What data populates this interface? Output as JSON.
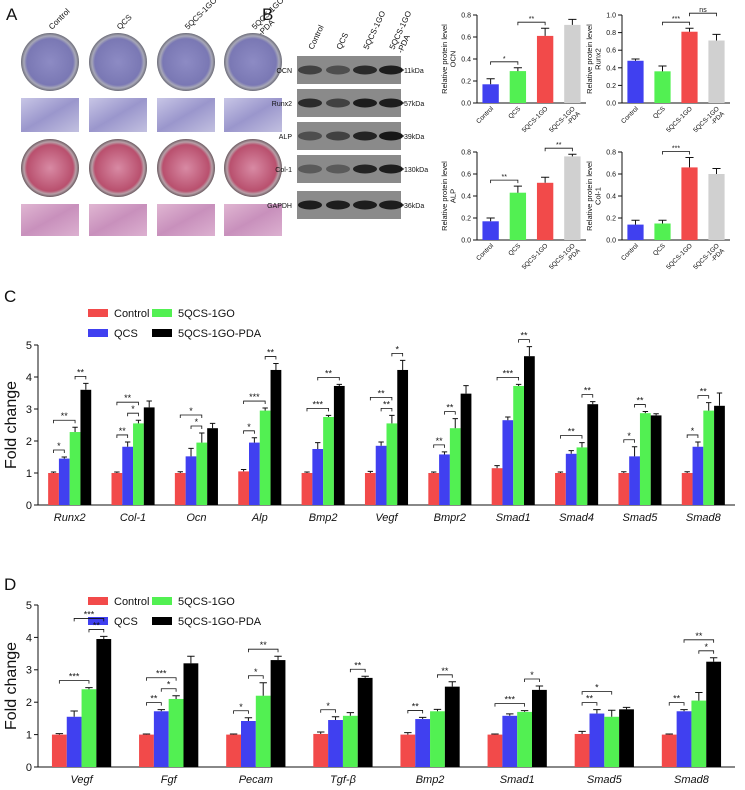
{
  "figure": {
    "panel_labels": [
      "A",
      "B",
      "C",
      "D"
    ],
    "stain_columns": [
      "Control",
      "QCS",
      "5QCS-1GO",
      "5QCS-1GO\n-PDA"
    ],
    "blot": {
      "columns": [
        "Control",
        "QCS",
        "5QCS-1GO",
        "5QCS-1GO\n-PDA"
      ],
      "rows": [
        "OCN",
        "Runx2",
        "ALP",
        "Col-1",
        "GAPDH"
      ],
      "sizes": [
        "11kDa",
        "57kDa",
        "39kDa",
        "130kDa",
        "36kDa"
      ]
    }
  },
  "chart_data": [
    {
      "type": "bar",
      "ylabel": "Relative protein level\nOCN",
      "categories": [
        "Control",
        "QCS",
        "5QCS-1GO",
        "5QCS-1GO\n-PDA"
      ],
      "values": [
        0.17,
        0.29,
        0.61,
        0.71
      ],
      "errors": [
        0.05,
        0.03,
        0.07,
        0.05
      ],
      "colors": [
        "#4040f0",
        "#52f052",
        "#f24a4a",
        "#d0d0d0"
      ],
      "ylim": [
        0,
        0.8
      ],
      "yticks": [
        {
          "value": 0,
          "label": "0.0"
        },
        0.2,
        0.4,
        0.6,
        0.8
      ],
      "annotations": [
        {
          "label": "*",
          "between": [
            0,
            1
          ]
        },
        {
          "label": "**",
          "between": [
            1,
            2
          ]
        }
      ]
    },
    {
      "type": "bar",
      "ylabel": "Relative protein level\nRunx2",
      "categories": [
        "Control",
        "QCS",
        "5QCS-1GO",
        "5QCS-1GO\n-PDA"
      ],
      "values": [
        0.48,
        0.36,
        0.81,
        0.71
      ],
      "errors": [
        0.02,
        0.06,
        0.04,
        0.07
      ],
      "colors": [
        "#4040f0",
        "#52f052",
        "#f24a4a",
        "#d0d0d0"
      ],
      "ylim": [
        0,
        1
      ],
      "yticks": [
        {
          "value": 0,
          "label": "0.0"
        },
        0.2,
        0.4,
        0.6,
        0.8,
        {
          "value": 1,
          "label": "1.0"
        }
      ],
      "annotations": [
        {
          "label": "***",
          "between": [
            1,
            2
          ]
        },
        {
          "label": "ns",
          "between": [
            2,
            3
          ]
        }
      ]
    },
    {
      "type": "bar",
      "ylabel": "Relative protein level\nALP",
      "categories": [
        "Control",
        "QCS",
        "5QCS-1GO",
        "5QCS-1GO\n-PDA"
      ],
      "values": [
        0.17,
        0.43,
        0.52,
        0.76
      ],
      "errors": [
        0.03,
        0.06,
        0.05,
        0.02
      ],
      "colors": [
        "#4040f0",
        "#52f052",
        "#f24a4a",
        "#d0d0d0"
      ],
      "ylim": [
        0,
        0.8
      ],
      "yticks": [
        {
          "value": 0,
          "label": "0.0"
        },
        0.2,
        0.4,
        0.6,
        0.8
      ],
      "annotations": [
        {
          "label": "**",
          "between": [
            0,
            1
          ]
        },
        {
          "label": "**",
          "between": [
            2,
            3
          ]
        }
      ]
    },
    {
      "type": "bar",
      "ylabel": "Relative protein level\nCol-1",
      "categories": [
        "Control",
        "QCS",
        "5QCS-1GO",
        "5QCS-1GO\n-PDA"
      ],
      "values": [
        0.14,
        0.15,
        0.66,
        0.6
      ],
      "errors": [
        0.04,
        0.03,
        0.09,
        0.05
      ],
      "colors": [
        "#4040f0",
        "#52f052",
        "#f24a4a",
        "#d0d0d0"
      ],
      "ylim": [
        0,
        0.8
      ],
      "yticks": [
        {
          "value": 0,
          "label": "0.0"
        },
        0.2,
        0.4,
        0.6,
        0.8
      ],
      "annotations": [
        {
          "label": "***",
          "between": [
            1,
            2
          ]
        }
      ]
    },
    {
      "type": "grouped-bar",
      "ylabel": "Fold change",
      "categories": [
        "Runx2",
        "Col-1",
        "Ocn",
        "Alp",
        "Bmp2",
        "Vegf",
        "Bmpr2",
        "Smad1",
        "Smad4",
        "Smad5",
        "Smad8"
      ],
      "series": [
        {
          "name": "Control",
          "color": "#f24a4a",
          "values": [
            1,
            1,
            1,
            1.05,
            1,
            1,
            1,
            1.15,
            1,
            1,
            1
          ],
          "errors": [
            0.03,
            0.03,
            0.04,
            0.06,
            0.03,
            0.05,
            0.03,
            0.08,
            0.03,
            0.04,
            0.04
          ]
        },
        {
          "name": "QCS",
          "color": "#4040f0",
          "values": [
            1.45,
            1.82,
            1.52,
            1.95,
            1.75,
            1.85,
            1.58,
            2.65,
            1.6,
            1.52,
            1.82
          ],
          "errors": [
            0.05,
            0.15,
            0.25,
            0.15,
            0.2,
            0.12,
            0.08,
            0.1,
            0.1,
            0.3,
            0.15
          ]
        },
        {
          "name": "5QCS-1GO",
          "color": "#52f052",
          "values": [
            2.28,
            2.55,
            1.95,
            2.95,
            2.75,
            2.55,
            2.4,
            3.72,
            1.8,
            2.87,
            2.95
          ],
          "errors": [
            0.15,
            0.1,
            0.3,
            0.08,
            0.05,
            0.25,
            0.3,
            0.05,
            0.15,
            0.05,
            0.25
          ]
        },
        {
          "name": "5QCS-1GO-PDA",
          "color": "#000000",
          "values": [
            3.6,
            3.05,
            2.4,
            4.22,
            3.72,
            4.22,
            3.48,
            4.65,
            3.15,
            2.8,
            3.1
          ],
          "errors": [
            0.2,
            0.2,
            0.15,
            0.2,
            0.05,
            0.3,
            0.25,
            0.3,
            0.08,
            0.05,
            0.4
          ]
        }
      ],
      "ylim": [
        0,
        5
      ],
      "yticks": [
        0,
        1,
        2,
        3,
        4,
        5
      ],
      "annotations": [
        {
          "label": "*",
          "category": 0,
          "between": [
            0,
            1
          ]
        },
        {
          "label": "**",
          "category": 0,
          "between": [
            0,
            2
          ]
        },
        {
          "label": "**",
          "category": 0,
          "between": [
            2,
            3
          ]
        },
        {
          "label": "**",
          "category": 1,
          "between": [
            0,
            1
          ]
        },
        {
          "label": "*",
          "category": 1,
          "between": [
            1,
            2
          ]
        },
        {
          "label": "**",
          "category": 1,
          "between": [
            0,
            2
          ]
        },
        {
          "label": "*",
          "category": 2,
          "between": [
            1,
            2
          ]
        },
        {
          "label": "*",
          "category": 2,
          "between": [
            0,
            2
          ]
        },
        {
          "label": "*",
          "category": 3,
          "between": [
            0,
            1
          ]
        },
        {
          "label": "***",
          "category": 3,
          "between": [
            0,
            2
          ]
        },
        {
          "label": "**",
          "category": 3,
          "between": [
            2,
            3
          ]
        },
        {
          "label": "***",
          "category": 4,
          "between": [
            0,
            2
          ]
        },
        {
          "label": "**",
          "category": 4,
          "between": [
            1,
            3
          ]
        },
        {
          "label": "**",
          "category": 5,
          "between": [
            1,
            2
          ]
        },
        {
          "label": "**",
          "category": 5,
          "between": [
            0,
            2
          ]
        },
        {
          "label": "*",
          "category": 5,
          "between": [
            2,
            3
          ]
        },
        {
          "label": "**",
          "category": 6,
          "between": [
            0,
            1
          ]
        },
        {
          "label": "**",
          "category": 6,
          "between": [
            1,
            2
          ]
        },
        {
          "label": "***",
          "category": 7,
          "between": [
            0,
            2
          ]
        },
        {
          "label": "**",
          "category": 7,
          "between": [
            2,
            3
          ]
        },
        {
          "label": "**",
          "category": 8,
          "between": [
            0,
            2
          ]
        },
        {
          "label": "**",
          "category": 8,
          "between": [
            2,
            3
          ]
        },
        {
          "label": "*",
          "category": 9,
          "between": [
            0,
            1
          ]
        },
        {
          "label": "**",
          "category": 9,
          "between": [
            1,
            2
          ]
        },
        {
          "label": "*",
          "category": 10,
          "between": [
            0,
            1
          ]
        },
        {
          "label": "**",
          "category": 10,
          "between": [
            1,
            2
          ]
        }
      ]
    },
    {
      "type": "grouped-bar",
      "ylabel": "Fold change",
      "categories": [
        "Vegf",
        "Fgf",
        "Pecam",
        "Tgf-β",
        "Bmp2",
        "Smad1",
        "Smad5",
        "Smad8"
      ],
      "series": [
        {
          "name": "Control",
          "color": "#f24a4a",
          "values": [
            1,
            1,
            1,
            1.02,
            1,
            1,
            1.02,
            1
          ],
          "errors": [
            0.03,
            0.02,
            0.02,
            0.06,
            0.06,
            0.02,
            0.08,
            0.02
          ]
        },
        {
          "name": "QCS",
          "color": "#4040f0",
          "values": [
            1.55,
            1.72,
            1.42,
            1.45,
            1.48,
            1.58,
            1.65,
            1.72
          ],
          "errors": [
            0.18,
            0.05,
            0.1,
            0.1,
            0.05,
            0.06,
            0.12,
            0.05
          ]
        },
        {
          "name": "5QCS-1GO",
          "color": "#52f052",
          "values": [
            2.4,
            2.1,
            2.2,
            1.58,
            1.72,
            1.7,
            1.55,
            2.05
          ],
          "errors": [
            0.05,
            0.1,
            0.4,
            0.1,
            0.06,
            0.04,
            0.2,
            0.25
          ]
        },
        {
          "name": "5QCS-1GO-PDA",
          "color": "#000000",
          "values": [
            3.95,
            3.2,
            3.3,
            2.75,
            2.48,
            2.38,
            1.78,
            3.25
          ],
          "errors": [
            0.08,
            0.22,
            0.12,
            0.05,
            0.15,
            0.12,
            0.06,
            0.12
          ]
        }
      ],
      "ylim": [
        0,
        5
      ],
      "yticks": [
        0,
        1,
        2,
        3,
        4,
        5
      ],
      "annotations": [
        {
          "label": "***",
          "category": 0,
          "between": [
            0,
            2
          ]
        },
        {
          "label": "**",
          "category": 0,
          "between": [
            2,
            3
          ]
        },
        {
          "label": "***",
          "category": 0,
          "between": [
            1,
            3
          ]
        },
        {
          "label": "**",
          "category": 1,
          "between": [
            0,
            1
          ]
        },
        {
          "label": "*",
          "category": 1,
          "between": [
            1,
            2
          ]
        },
        {
          "label": "***",
          "category": 1,
          "between": [
            0,
            2
          ]
        },
        {
          "label": "*",
          "category": 2,
          "between": [
            0,
            1
          ]
        },
        {
          "label": "*",
          "category": 2,
          "between": [
            1,
            2
          ]
        },
        {
          "label": "**",
          "category": 2,
          "between": [
            1,
            3
          ]
        },
        {
          "label": "*",
          "category": 3,
          "between": [
            0,
            1
          ]
        },
        {
          "label": "**",
          "category": 3,
          "between": [
            2,
            3
          ]
        },
        {
          "label": "**",
          "category": 4,
          "between": [
            0,
            1
          ]
        },
        {
          "label": "**",
          "category": 4,
          "between": [
            2,
            3
          ]
        },
        {
          "label": "***",
          "category": 5,
          "between": [
            0,
            2
          ]
        },
        {
          "label": "*",
          "category": 5,
          "between": [
            2,
            3
          ]
        },
        {
          "label": "**",
          "category": 6,
          "between": [
            0,
            1
          ]
        },
        {
          "label": "*",
          "category": 6,
          "between": [
            0,
            2
          ]
        },
        {
          "label": "**",
          "category": 7,
          "between": [
            0,
            1
          ]
        },
        {
          "label": "*",
          "category": 7,
          "between": [
            2,
            3
          ]
        },
        {
          "label": "**",
          "category": 7,
          "between": [
            1,
            3
          ]
        }
      ]
    }
  ]
}
